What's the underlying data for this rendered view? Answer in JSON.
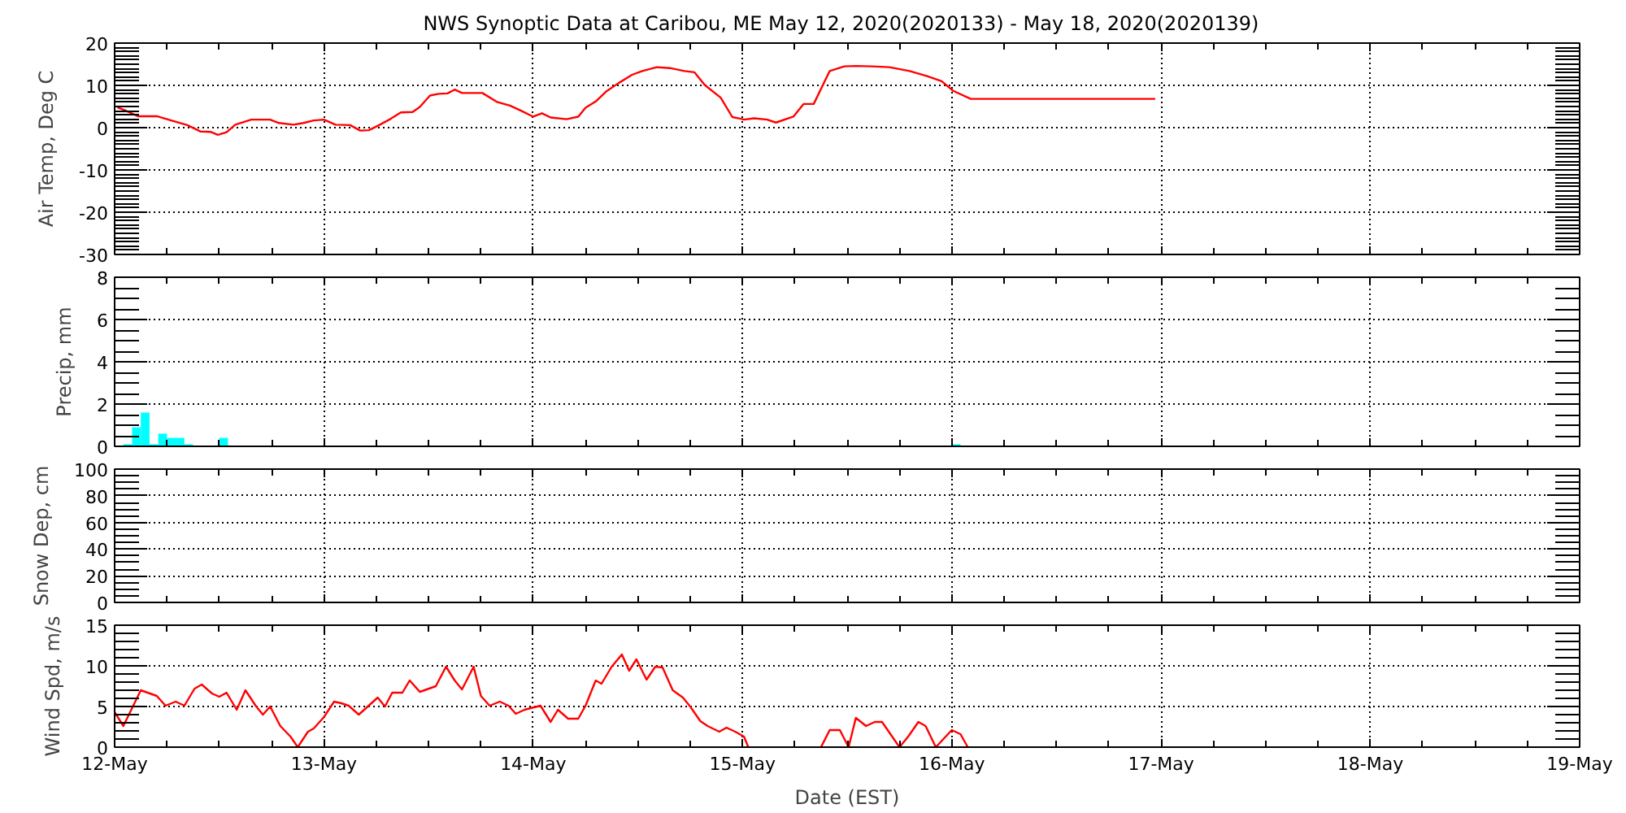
{
  "chart_data": [
    {
      "type": "line",
      "title": "NWS Synoptic Data at Caribou, ME   May 12, 2020(2020133) - May 18, 2020(2020139)",
      "ylabel": "Air Temp, Deg C",
      "color": "#ff0000",
      "x": [
        "2020-05-12T00:20",
        "2020-05-12T01:10",
        "2020-05-12T02:40",
        "2020-05-12T04:50",
        "2020-05-12T06:10",
        "2020-05-12T08:20",
        "2020-05-12T09:50",
        "2020-05-12T11:00",
        "2020-05-12T11:50",
        "2020-05-12T12:50",
        "2020-05-12T13:50",
        "2020-05-12T15:40",
        "2020-05-12T17:50",
        "2020-05-12T18:50",
        "2020-05-12T20:30",
        "2020-05-12T21:40",
        "2020-05-12T22:50",
        "2020-05-13T00:00",
        "2020-05-13T01:20",
        "2020-05-13T03:00",
        "2020-05-13T04:10",
        "2020-05-13T05:10",
        "2020-05-13T06:20",
        "2020-05-13T07:40",
        "2020-05-13T08:50",
        "2020-05-13T10:10",
        "2020-05-13T11:00",
        "2020-05-13T12:10",
        "2020-05-13T13:10",
        "2020-05-13T14:10",
        "2020-05-13T15:00",
        "2020-05-13T15:50",
        "2020-05-13T18:10",
        "2020-05-13T19:50",
        "2020-05-13T21:20",
        "2020-05-13T22:30",
        "2020-05-14T00:00",
        "2020-05-14T01:00",
        "2020-05-14T02:00",
        "2020-05-14T03:50",
        "2020-05-14T05:10",
        "2020-05-14T06:00",
        "2020-05-14T07:10",
        "2020-05-14T08:20",
        "2020-05-14T09:50",
        "2020-05-14T11:20",
        "2020-05-14T12:30",
        "2020-05-14T14:10",
        "2020-05-14T15:40",
        "2020-05-14T17:20",
        "2020-05-14T18:30",
        "2020-05-14T19:40",
        "2020-05-14T21:30",
        "2020-05-14T22:50",
        "2020-05-14T23:50",
        "2020-05-15T00:10",
        "2020-05-15T01:20",
        "2020-05-15T02:50",
        "2020-05-15T03:50",
        "2020-05-15T05:50",
        "2020-05-15T07:00",
        "2020-05-15T08:10",
        "2020-05-15T10:00",
        "2020-05-15T11:40",
        "2020-05-15T13:00",
        "2020-05-15T14:50",
        "2020-05-15T16:50",
        "2020-05-15T19:10",
        "2020-05-15T21:10",
        "2020-05-15T22:50",
        "2020-05-16T00:10",
        "2020-05-16T02:10",
        "2020-05-16T23:20"
      ],
      "values": [
        4.8,
        4.1,
        2.7,
        2.7,
        1.9,
        0.6,
        -0.9,
        -1.0,
        -1.7,
        -1.1,
        0.7,
        1.9,
        1.9,
        1.1,
        0.7,
        1.1,
        1.7,
        1.9,
        0.7,
        0.6,
        -0.7,
        -0.6,
        0.6,
        2.1,
        3.6,
        3.7,
        4.9,
        7.6,
        8.0,
        8.1,
        9.0,
        8.2,
        8.2,
        6.1,
        5.2,
        4.1,
        2.6,
        3.4,
        2.4,
        2.0,
        2.6,
        4.7,
        6.2,
        8.5,
        10.6,
        12.5,
        13.4,
        14.3,
        14.1,
        13.4,
        13.1,
        10.1,
        7.1,
        2.5,
        2.1,
        1.9,
        2.2,
        1.9,
        1.2,
        2.6,
        5.6,
        5.6,
        13.4,
        14.5,
        14.6,
        14.5,
        14.3,
        13.4,
        12.2,
        11.0,
        8.7,
        6.8,
        6.8
      ],
      "xlim": [
        "2020-05-12",
        "2020-05-19"
      ],
      "xticks": [
        {
          "value": "2020-05-12",
          "label": null
        },
        {
          "value": "2020-05-13",
          "label": null
        },
        {
          "value": "2020-05-14",
          "label": null
        },
        {
          "value": "2020-05-15",
          "label": null
        },
        {
          "value": "2020-05-16",
          "label": null
        },
        {
          "value": "2020-05-17",
          "label": null
        },
        {
          "value": "2020-05-18",
          "label": null
        },
        {
          "value": "2020-05-19",
          "label": null
        }
      ],
      "ylim": [
        -30,
        20
      ],
      "yticks": [
        -30,
        -20,
        -10,
        0,
        10,
        20
      ],
      "grid": true,
      "tick_labels": "y"
    },
    {
      "type": "bar",
      "ylabel": "Precip, mm",
      "color": "#00ffff",
      "x": [
        "2020-05-12T01:30",
        "2020-05-12T02:30",
        "2020-05-12T03:30",
        "2020-05-12T04:30",
        "2020-05-12T05:30",
        "2020-05-12T06:30",
        "2020-05-12T07:30",
        "2020-05-12T08:30",
        "2020-05-12T12:30",
        "2020-05-16T00:30"
      ],
      "values": [
        0.1,
        0.9,
        1.6,
        0.1,
        0.6,
        0.4,
        0.4,
        0.1,
        0.4,
        0.1
      ],
      "xlim": [
        "2020-05-12",
        "2020-05-19"
      ],
      "xticks": [
        {
          "value": "2020-05-12",
          "label": null
        },
        {
          "value": "2020-05-13",
          "label": null
        },
        {
          "value": "2020-05-14",
          "label": null
        },
        {
          "value": "2020-05-15",
          "label": null
        },
        {
          "value": "2020-05-16",
          "label": null
        },
        {
          "value": "2020-05-17",
          "label": null
        },
        {
          "value": "2020-05-18",
          "label": null
        },
        {
          "value": "2020-05-19",
          "label": null
        }
      ],
      "ylim": [
        0,
        8
      ],
      "yticks": [
        0,
        2,
        4,
        6,
        8
      ],
      "grid": true,
      "tick_labels": "y"
    },
    {
      "type": "line",
      "ylabel": "Snow Dep, cm",
      "xlim": [
        "2020-05-12",
        "2020-05-19"
      ],
      "xticks": [
        {
          "value": "2020-05-12",
          "label": null
        },
        {
          "value": "2020-05-13",
          "label": null
        },
        {
          "value": "2020-05-14",
          "label": null
        },
        {
          "value": "2020-05-15",
          "label": null
        },
        {
          "value": "2020-05-16",
          "label": null
        },
        {
          "value": "2020-05-17",
          "label": null
        },
        {
          "value": "2020-05-18",
          "label": null
        },
        {
          "value": "2020-05-19",
          "label": null
        }
      ],
      "ylim": [
        0,
        100
      ],
      "yticks": [
        0,
        20,
        40,
        60,
        80,
        100
      ],
      "grid": true,
      "tick_labels": "y"
    },
    {
      "type": "line",
      "ylabel": "Wind Spd, m/s",
      "xlabel": "Date (EST)",
      "color": "#ff0000",
      "x": [
        "2020-05-12T00:00",
        "2020-05-12T01:00",
        "2020-05-12T03:00",
        "2020-05-12T04:50",
        "2020-05-12T05:50",
        "2020-05-12T07:00",
        "2020-05-12T08:00",
        "2020-05-12T09:10",
        "2020-05-12T10:00",
        "2020-05-12T11:10",
        "2020-05-12T12:00",
        "2020-05-12T12:50",
        "2020-05-12T14:00",
        "2020-05-12T15:00",
        "2020-05-12T16:10",
        "2020-05-12T17:00",
        "2020-05-12T17:50",
        "2020-05-12T19:00",
        "2020-05-12T20:10",
        "2020-05-12T21:00",
        "2020-05-12T22:10",
        "2020-05-12T22:50",
        "2020-05-13T00:00",
        "2020-05-13T01:10",
        "2020-05-13T02:00",
        "2020-05-13T02:50",
        "2020-05-13T04:00",
        "2020-05-13T06:10",
        "2020-05-13T07:00",
        "2020-05-13T07:50",
        "2020-05-13T09:00",
        "2020-05-13T09:50",
        "2020-05-13T11:00",
        "2020-05-13T12:50",
        "2020-05-13T14:00",
        "2020-05-13T15:00",
        "2020-05-13T15:50",
        "2020-05-13T17:10",
        "2020-05-13T18:00",
        "2020-05-13T19:00",
        "2020-05-13T20:10",
        "2020-05-13T21:10",
        "2020-05-13T22:00",
        "2020-05-13T23:00",
        "2020-05-14T00:50",
        "2020-05-14T02:00",
        "2020-05-14T02:50",
        "2020-05-14T04:00",
        "2020-05-14T05:10",
        "2020-05-14T06:00",
        "2020-05-14T07:10",
        "2020-05-14T07:50",
        "2020-05-14T09:00",
        "2020-05-14T10:10",
        "2020-05-14T11:00",
        "2020-05-14T11:50",
        "2020-05-14T13:00",
        "2020-05-14T14:00",
        "2020-05-14T14:50",
        "2020-05-14T16:00",
        "2020-05-14T17:10",
        "2020-05-14T18:00",
        "2020-05-14T19:10",
        "2020-05-14T20:00",
        "2020-05-14T21:20",
        "2020-05-14T22:10",
        "2020-05-14T23:10",
        "2020-05-15T00:10",
        "2020-05-15T00:40",
        "2020-05-15T04:00",
        "2020-05-15T09:00",
        "2020-05-15T10:00",
        "2020-05-15T11:10",
        "2020-05-15T12:10",
        "2020-05-15T13:00",
        "2020-05-15T14:10",
        "2020-05-15T15:10",
        "2020-05-15T16:00",
        "2020-05-15T18:00",
        "2020-05-15T19:00",
        "2020-05-15T20:10",
        "2020-05-15T21:00",
        "2020-05-15T22:10",
        "2020-05-16T00:00",
        "2020-05-16T01:00",
        "2020-05-16T01:50"
      ],
      "values": [
        4.3,
        2.6,
        7.0,
        6.3,
        5.1,
        5.6,
        5.1,
        7.2,
        7.7,
        6.6,
        6.2,
        6.7,
        4.6,
        7.0,
        5.1,
        4.0,
        5.0,
        2.6,
        1.3,
        0,
        1.9,
        2.3,
        3.7,
        5.6,
        5.4,
        5.1,
        4.0,
        6.1,
        5.0,
        6.7,
        6.7,
        8.2,
        6.8,
        7.5,
        9.9,
        8.2,
        7.1,
        9.9,
        6.3,
        5.1,
        5.6,
        5.1,
        4.1,
        4.6,
        5.1,
        3.1,
        4.6,
        3.5,
        3.5,
        5.1,
        8.2,
        7.8,
        9.9,
        11.4,
        9.4,
        10.8,
        8.3,
        9.9,
        9.8,
        7.0,
        6.1,
        5.0,
        3.2,
        2.6,
        1.9,
        2.4,
        1.9,
        1.3,
        0,
        null,
        0,
        2.1,
        2.1,
        0,
        3.6,
        2.6,
        3.1,
        3.1,
        0,
        1.3,
        3.1,
        2.6,
        0,
        2.1,
        1.6,
        0
      ],
      "xlim": [
        "2020-05-12",
        "2020-05-19"
      ],
      "xticks": [
        {
          "value": "2020-05-12",
          "label": "12-May"
        },
        {
          "value": "2020-05-13",
          "label": "13-May"
        },
        {
          "value": "2020-05-14",
          "label": "14-May"
        },
        {
          "value": "2020-05-15",
          "label": "15-May"
        },
        {
          "value": "2020-05-16",
          "label": "16-May"
        },
        {
          "value": "2020-05-17",
          "label": "17-May"
        },
        {
          "value": "2020-05-18",
          "label": "18-May"
        },
        {
          "value": "2020-05-19",
          "label": "19-May"
        }
      ],
      "ylim": [
        0,
        15
      ],
      "yticks": [
        0,
        5,
        10,
        15
      ],
      "grid": true
    }
  ]
}
